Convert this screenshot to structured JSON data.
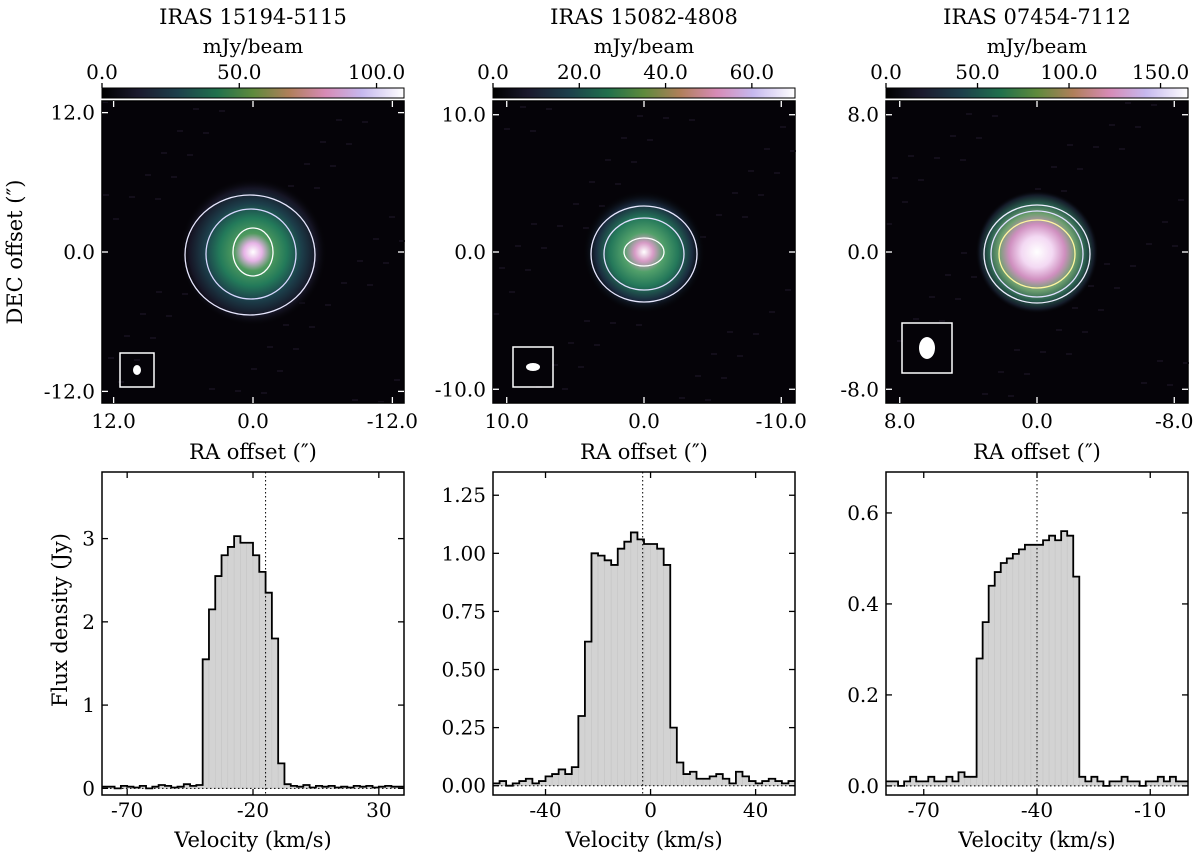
{
  "colorbar_label": "mJy/beam",
  "top_ylabel": "DEC offset (″)",
  "top_xlabel": "RA offset (″)",
  "bottom_ylabel": "Flux density (Jy)",
  "bottom_xlabel": "Velocity (km/s)",
  "chart_data": [
    {
      "type": "heatmap",
      "title": "IRAS 15194-5115",
      "colorbar_label": "mJy/beam",
      "colorbar_range": [
        0,
        110
      ],
      "colorbar_ticks": [
        "0.0",
        "50.0",
        "100.0"
      ],
      "xlabel": "RA offset (″)",
      "ylabel": "DEC offset (″)",
      "xlim": [
        13.0,
        -13.0
      ],
      "ylim": [
        -13.0,
        13.0
      ],
      "xticks": [
        "12.0",
        "0.0",
        "-12.0"
      ],
      "yticks": [
        "12.0",
        "0.0",
        "-12.0"
      ]
    },
    {
      "type": "heatmap",
      "title": "IRAS 15082-4808",
      "colorbar_label": "mJy/beam",
      "colorbar_range": [
        0,
        70
      ],
      "colorbar_ticks": [
        "0.0",
        "20.0",
        "40.0",
        "60.0"
      ],
      "xlabel": "RA offset (″)",
      "xlim": [
        11.0,
        -11.0
      ],
      "ylim": [
        -11.0,
        11.0
      ],
      "xticks": [
        "10.0",
        "0.0",
        "-10.0"
      ],
      "yticks": [
        "10.0",
        "0.0",
        "-10.0"
      ]
    },
    {
      "type": "heatmap",
      "title": "IRAS 07454-7112",
      "colorbar_label": "mJy/beam",
      "colorbar_range": [
        0,
        165
      ],
      "colorbar_ticks": [
        "0.0",
        "50.0",
        "100.0",
        "150.0"
      ],
      "xlabel": "RA offset (″)",
      "xlim": [
        8.8,
        -8.8
      ],
      "ylim": [
        -8.8,
        8.8
      ],
      "xticks": [
        "8.0",
        "0.0",
        "-8.0"
      ],
      "yticks": [
        "8.0",
        "0.0",
        "-8.0"
      ]
    },
    {
      "type": "bar",
      "subtype": "step-histogram",
      "xlabel": "Velocity (km/s)",
      "ylabel": "Flux density (Jy)",
      "xlim": [
        -80,
        40
      ],
      "ylim": [
        -0.08,
        3.8
      ],
      "xticks": [
        -70,
        -20,
        30
      ],
      "yticks": [
        0,
        1,
        2,
        3
      ],
      "systemic_velocity": -15,
      "bin_edges_start": -80,
      "bin_width": 2.5,
      "values": [
        0.02,
        0.02,
        0.0,
        0.03,
        0.02,
        0.01,
        0.03,
        0.0,
        0.02,
        0.04,
        0.03,
        0.01,
        0.02,
        0.05,
        0.03,
        0.04,
        1.55,
        2.15,
        2.55,
        2.8,
        2.9,
        3.03,
        2.95,
        2.95,
        2.8,
        2.6,
        2.35,
        1.8,
        0.3,
        0.05,
        0.03,
        0.02,
        0.04,
        0.01,
        0.03,
        0.02,
        0.03,
        0.01,
        0.02,
        0.01,
        0.03,
        0.02,
        0.03,
        0.01,
        0.02,
        0.03,
        0.02,
        0.02
      ]
    },
    {
      "type": "bar",
      "subtype": "step-histogram",
      "xlabel": "Velocity (km/s)",
      "xlim": [
        -60,
        55
      ],
      "ylim": [
        -0.04,
        1.35
      ],
      "xticks": [
        -40,
        0,
        40
      ],
      "ytick_labels": [
        "0.00",
        "0.25",
        "0.50",
        "0.75",
        "1.00",
        "1.25"
      ],
      "systemic_velocity": -3,
      "bin_edges_start": -60,
      "bin_width": 2.5,
      "values": [
        0.01,
        0.02,
        0.0,
        0.01,
        0.02,
        0.03,
        0.01,
        0.02,
        0.04,
        0.05,
        0.07,
        0.05,
        0.08,
        0.3,
        0.62,
        1.0,
        0.99,
        0.97,
        0.95,
        1.02,
        1.05,
        1.09,
        1.06,
        1.04,
        1.04,
        1.02,
        0.95,
        0.25,
        0.1,
        0.05,
        0.06,
        0.03,
        0.03,
        0.04,
        0.05,
        0.03,
        0.01,
        0.06,
        0.04,
        0.02,
        0.01,
        0.02,
        0.03,
        0.02,
        0.01,
        0.02
      ]
    },
    {
      "type": "bar",
      "subtype": "step-histogram",
      "xlabel": "Velocity (km/s)",
      "xlim": [
        -80,
        0
      ],
      "ylim": [
        -0.02,
        0.69
      ],
      "xticks": [
        -70,
        -40,
        -10
      ],
      "ytick_labels": [
        "0.0",
        "0.2",
        "0.4",
        "0.6"
      ],
      "systemic_velocity": -40,
      "bin_edges_start": -80,
      "bin_width": 1.6,
      "values": [
        0.01,
        0.01,
        0.0,
        0.01,
        0.02,
        0.01,
        0.01,
        0.02,
        0.01,
        0.01,
        0.02,
        0.01,
        0.03,
        0.02,
        0.02,
        0.28,
        0.36,
        0.44,
        0.47,
        0.49,
        0.5,
        0.51,
        0.52,
        0.53,
        0.53,
        0.53,
        0.54,
        0.55,
        0.54,
        0.56,
        0.55,
        0.46,
        0.02,
        0.01,
        0.02,
        0.01,
        0.0,
        0.01,
        0.01,
        0.02,
        0.01,
        0.01,
        0.0,
        0.01,
        0.01,
        0.02,
        0.01,
        0.02,
        0.01,
        0.01
      ]
    }
  ]
}
